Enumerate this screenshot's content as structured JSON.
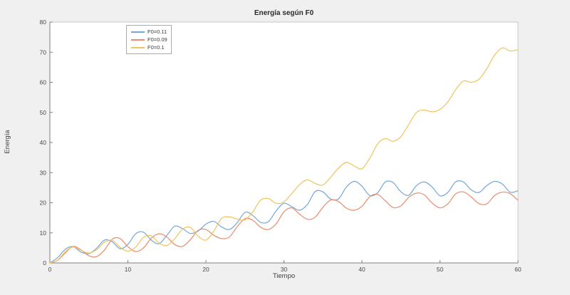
{
  "colors": {
    "figure_background": "#f0f0f0",
    "plot_background": "#ffffff",
    "axis_line": "#808080",
    "box_line": "#c8c8c8",
    "tick_text": "#4a4a4a",
    "title_text": "#2b2b2b"
  },
  "chart_data": {
    "type": "line",
    "title": "Energía según F0",
    "xlabel": "Tiempo",
    "ylabel": "Energía",
    "xlim": [
      0,
      60
    ],
    "ylim": [
      0,
      80
    ],
    "x_ticks": [
      0,
      10,
      20,
      30,
      40,
      50,
      60
    ],
    "y_ticks": [
      0,
      10,
      20,
      30,
      40,
      50,
      60,
      70,
      80
    ],
    "grid": false,
    "legend_position": "inside-top-left",
    "x": [
      0,
      1,
      2,
      3,
      4,
      5,
      6,
      7,
      8,
      9,
      10,
      11,
      12,
      13,
      14,
      15,
      16,
      17,
      18,
      19,
      20,
      21,
      22,
      23,
      24,
      25,
      26,
      27,
      28,
      29,
      30,
      31,
      32,
      33,
      34,
      35,
      36,
      37,
      38,
      39,
      40,
      41,
      42,
      43,
      44,
      45,
      46,
      47,
      48,
      49,
      50,
      51,
      52,
      53,
      54,
      55,
      56,
      57,
      58,
      59,
      60
    ],
    "series": [
      {
        "name": "F0=0.11",
        "color": "#74a7d8",
        "values": [
          0,
          1.8,
          4.6,
          5.4,
          3.6,
          3.1,
          4.9,
          7.6,
          7.0,
          4.7,
          6.2,
          9.7,
          10.2,
          7.6,
          6.4,
          9.2,
          12.2,
          11.4,
          9.8,
          10.6,
          12.9,
          13.8,
          12.0,
          11.1,
          13.3,
          16.8,
          15.8,
          13.5,
          13.7,
          17.3,
          19.8,
          18.7,
          17.5,
          19.4,
          23.7,
          23.6,
          21.2,
          21.3,
          25.2,
          27.1,
          25.5,
          22.4,
          23.3,
          26.9,
          26.7,
          23.6,
          22.5,
          25.7,
          26.9,
          25.2,
          22.3,
          23.4,
          26.9,
          26.9,
          24.3,
          23.4,
          25.7,
          27.1,
          26.2,
          23.5,
          24.0
        ]
      },
      {
        "name": "F0=0.09",
        "color": "#e98c6d",
        "values": [
          0,
          0.9,
          3.4,
          5.5,
          4.3,
          2.4,
          2.1,
          4.3,
          7.9,
          8.1,
          5.4,
          3.8,
          5.0,
          8.2,
          9.7,
          8.6,
          6.1,
          5.5,
          7.7,
          10.8,
          11.1,
          9.2,
          8.1,
          8.6,
          12.0,
          14.7,
          14.2,
          11.9,
          11.1,
          13.0,
          17.0,
          18.3,
          16.2,
          14.5,
          15.2,
          18.5,
          20.9,
          20.4,
          18.2,
          17.5,
          18.8,
          22.0,
          22.8,
          20.6,
          18.4,
          19.0,
          21.8,
          23.2,
          22.6,
          19.9,
          18.3,
          19.6,
          22.9,
          23.6,
          21.9,
          19.7,
          19.6,
          22.4,
          23.5,
          23.0,
          20.8
        ]
      },
      {
        "name": "F0=0.1",
        "color": "#f0c45e",
        "values": [
          0,
          1.0,
          3.8,
          5.3,
          4.2,
          3.3,
          4.4,
          6.9,
          7.5,
          5.2,
          3.9,
          5.3,
          8.5,
          9.0,
          6.6,
          5.8,
          8.0,
          11.2,
          11.8,
          8.9,
          7.6,
          10.5,
          14.8,
          15.3,
          14.6,
          14.3,
          16.9,
          20.8,
          21.4,
          19.8,
          20.3,
          23.0,
          26.0,
          27.6,
          26.4,
          25.9,
          28.5,
          31.5,
          33.4,
          32.2,
          31.3,
          34.8,
          39.5,
          41.3,
          40.4,
          42.0,
          46.0,
          50.0,
          50.8,
          50.2,
          51.0,
          53.5,
          57.5,
          60.4,
          60.0,
          61.0,
          64.5,
          69.0,
          71.4,
          70.4,
          70.8
        ]
      }
    ]
  }
}
